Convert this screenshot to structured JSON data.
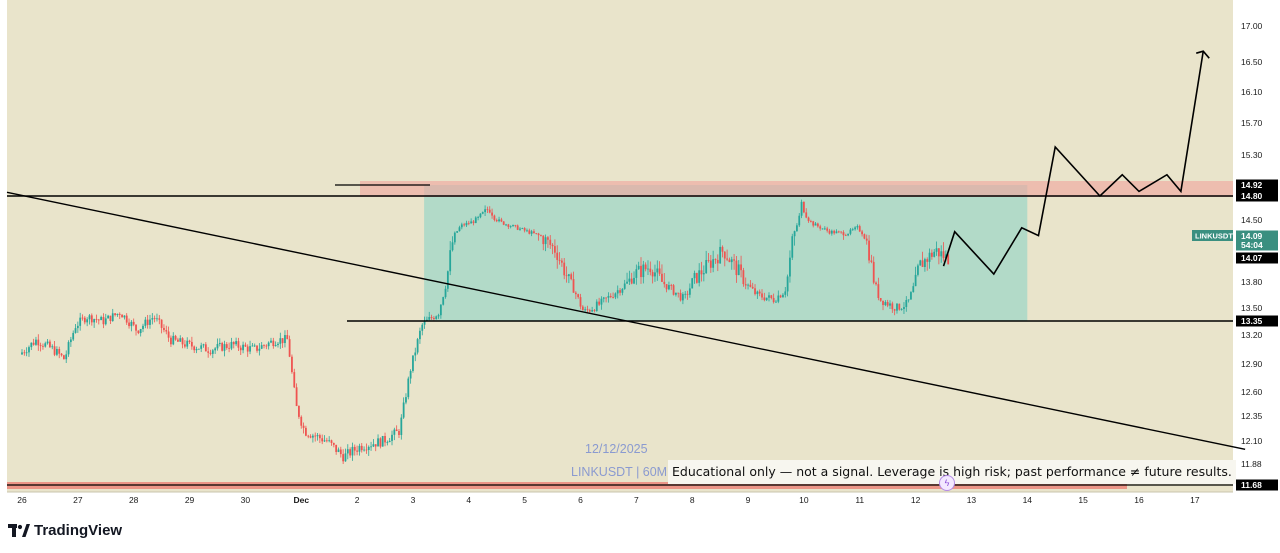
{
  "brand": {
    "name": "TradingView",
    "icon": "tradingview-logo-icon"
  },
  "watermark": {
    "date": "12/12/2025",
    "symbol_interval": "LINKUSDT | 60M"
  },
  "disclaimer": "Educational only — not a signal. Leverage is high risk; past performance ≠ future results.",
  "colors": {
    "chart_bg": "#e9e4cb",
    "up": "#26a69a",
    "down": "#ef5350",
    "range_box": "#a8d8c8",
    "resistance_zone": "#f0a8a0",
    "support_zone": "#ef5350"
  },
  "chart_data": {
    "type": "candlestick",
    "symbol": "LINKUSDT",
    "interval": "60M",
    "y_axis_ticks": [
      17.0,
      16.5,
      16.1,
      15.7,
      15.3,
      14.92,
      14.8,
      14.5,
      14.09,
      13.8,
      13.5,
      13.35,
      13.2,
      12.9,
      12.6,
      12.35,
      12.1,
      11.88,
      11.68
    ],
    "x_axis_ticks": [
      "26",
      "27",
      "28",
      "29",
      "30",
      "Dec",
      "2",
      "3",
      "4",
      "5",
      "6",
      "7",
      "8",
      "9",
      "10",
      "11",
      "12",
      "13",
      "14",
      "15",
      "16",
      "17"
    ],
    "price_labels": [
      {
        "value": "14.92",
        "kind": "level"
      },
      {
        "value": "14.80",
        "kind": "level"
      },
      {
        "value": "14.09",
        "kind": "last_price"
      },
      {
        "value": "54:04",
        "kind": "countdown"
      },
      {
        "value": "14.07",
        "kind": "level"
      },
      {
        "value": "13.35",
        "kind": "level"
      },
      {
        "value": "11.68",
        "kind": "level"
      }
    ],
    "symbol_label": "LINKUSDT",
    "last_price": 14.09,
    "countdown": "54:04",
    "price_path": [
      [
        0,
        13.0
      ],
      [
        0.3,
        13.15
      ],
      [
        0.6,
        13.05
      ],
      [
        0.8,
        12.95
      ],
      [
        1.0,
        13.3
      ],
      [
        1.2,
        13.4
      ],
      [
        1.5,
        13.35
      ],
      [
        1.8,
        13.45
      ],
      [
        2.1,
        13.25
      ],
      [
        2.4,
        13.4
      ],
      [
        2.7,
        13.15
      ],
      [
        3.0,
        13.1
      ],
      [
        3.4,
        13.05
      ],
      [
        3.8,
        13.1
      ],
      [
        4.2,
        13.05
      ],
      [
        4.6,
        13.15
      ],
      [
        4.8,
        13.15
      ],
      [
        4.95,
        12.45
      ],
      [
        5.1,
        12.2
      ],
      [
        5.5,
        12.1
      ],
      [
        5.8,
        11.95
      ],
      [
        6.1,
        12.05
      ],
      [
        6.5,
        12.1
      ],
      [
        6.8,
        12.2
      ],
      [
        7.0,
        12.85
      ],
      [
        7.2,
        13.3
      ],
      [
        7.5,
        13.45
      ],
      [
        7.7,
        13.95
      ],
      [
        7.9,
        14.35
      ],
      [
        8.2,
        14.5
      ],
      [
        8.4,
        14.65
      ],
      [
        8.6,
        14.45
      ],
      [
        9.0,
        14.25
      ],
      [
        9.3,
        14.1
      ],
      [
        9.6,
        14.0
      ],
      [
        9.9,
        13.75
      ],
      [
        10.1,
        13.45
      ],
      [
        10.4,
        13.55
      ],
      [
        10.7,
        13.7
      ],
      [
        11.0,
        13.85
      ],
      [
        11.3,
        13.9
      ],
      [
        11.6,
        13.75
      ],
      [
        11.9,
        13.6
      ],
      [
        12.05,
        13.8
      ],
      [
        12.3,
        13.9
      ],
      [
        12.6,
        14.0
      ],
      [
        12.9,
        13.85
      ],
      [
        13.2,
        13.65
      ],
      [
        13.5,
        13.6
      ],
      [
        13.7,
        13.7
      ],
      [
        13.85,
        14.1
      ],
      [
        14.0,
        14.7
      ],
      [
        14.2,
        14.4
      ],
      [
        14.5,
        14.2
      ],
      [
        14.8,
        14.15
      ],
      [
        15.0,
        14.3
      ],
      [
        15.2,
        14.0
      ],
      [
        15.4,
        13.6
      ],
      [
        15.7,
        13.5
      ],
      [
        15.9,
        13.55
      ],
      [
        16.1,
        13.9
      ],
      [
        16.4,
        14.0
      ],
      [
        16.6,
        13.95
      ]
    ],
    "horizontal_levels": [
      14.8,
      13.35,
      11.68
    ],
    "resistance_zone": [
      14.8,
      14.92
    ],
    "range_box": {
      "x_start": 7.2,
      "x_end": 18.0,
      "y_low": 13.35,
      "y_high": 14.92
    },
    "trendline": {
      "x1": 0,
      "y1": 14.84,
      "x2": 21.9,
      "y2": 12.02
    },
    "projection_path": [
      [
        16.5,
        13.9
      ],
      [
        16.7,
        14.2
      ],
      [
        17.4,
        13.85
      ],
      [
        17.9,
        14.3
      ],
      [
        18.2,
        14.1
      ],
      [
        18.5,
        15.4
      ],
      [
        19.3,
        14.8
      ],
      [
        19.7,
        15.05
      ],
      [
        20.0,
        14.85
      ],
      [
        20.5,
        15.05
      ],
      [
        20.75,
        14.85
      ],
      [
        21.15,
        16.65
      ]
    ],
    "title": "",
    "xlabel": "",
    "ylabel": ""
  }
}
